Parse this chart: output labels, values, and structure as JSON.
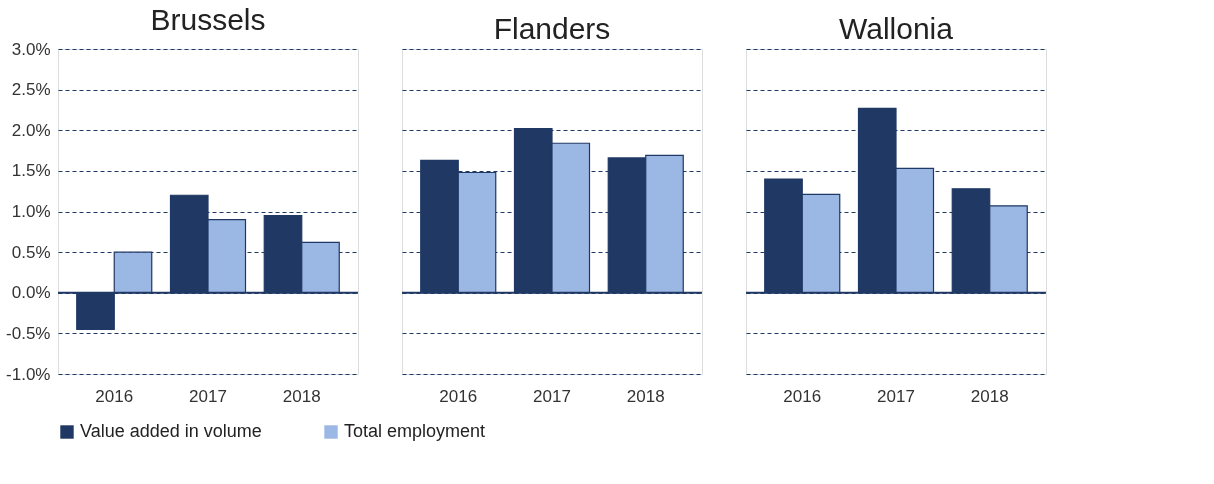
{
  "chart_data": [
    {
      "type": "bar",
      "title": "Brussels",
      "categories": [
        "2016",
        "2017",
        "2018"
      ],
      "series": [
        {
          "name": "Value added in volume",
          "color": "#203864",
          "values": [
            -0.45,
            1.2,
            0.95
          ]
        },
        {
          "name": "Total employment",
          "color": "#9bb7e3",
          "values": [
            0.5,
            0.9,
            0.62
          ]
        }
      ],
      "ylim": [
        -1,
        3
      ],
      "yticks": [
        {
          "value": -1,
          "label": "-1.0%"
        },
        {
          "value": -0.5,
          "label": "-0.5%"
        },
        {
          "value": 0,
          "label": "0.0%"
        },
        {
          "value": 0.5,
          "label": "0.5%"
        },
        {
          "value": 1,
          "label": "1.0%"
        },
        {
          "value": 1.5,
          "label": "1.5%"
        },
        {
          "value": 2,
          "label": "2.0%"
        },
        {
          "value": 2.5,
          "label": "2.5%"
        },
        {
          "value": 3,
          "label": "3.0%"
        }
      ],
      "ref_lines": [
        {
          "axis": "y",
          "value": 0,
          "color": "#203864"
        }
      ],
      "grid": "y",
      "legend": "bottom"
    },
    {
      "type": "bar",
      "title": "Flanders",
      "categories": [
        "2016",
        "2017",
        "2018"
      ],
      "series": [
        {
          "name": "Value added in volume",
          "color": "#203864",
          "values": [
            1.63,
            2.02,
            1.66
          ]
        },
        {
          "name": "Total employment",
          "color": "#9bb7e3",
          "values": [
            1.48,
            1.84,
            1.69
          ]
        }
      ],
      "ylim": [
        -1,
        3
      ],
      "yticks": [
        {
          "value": -1,
          "label": null
        },
        {
          "value": -0.5,
          "label": null
        },
        {
          "value": 0,
          "label": null
        },
        {
          "value": 0.5,
          "label": null
        },
        {
          "value": 1,
          "label": null
        },
        {
          "value": 1.5,
          "label": null
        },
        {
          "value": 2,
          "label": null
        },
        {
          "value": 2.5,
          "label": null
        },
        {
          "value": 3,
          "label": null
        }
      ],
      "ref_lines": [
        {
          "axis": "y",
          "value": 0,
          "color": "#203864"
        }
      ],
      "grid": "y",
      "legend": "bottom",
      "tick_labels": "x"
    },
    {
      "type": "bar",
      "title": "Wallonia",
      "categories": [
        "2016",
        "2017",
        "2018"
      ],
      "series": [
        {
          "name": "Value added in volume",
          "color": "#203864",
          "values": [
            1.4,
            2.27,
            1.28
          ]
        },
        {
          "name": "Total employment",
          "color": "#9bb7e3",
          "values": [
            1.21,
            1.53,
            1.07
          ]
        }
      ],
      "ylim": [
        -1,
        3
      ],
      "yticks": [
        {
          "value": -1,
          "label": null
        },
        {
          "value": -0.5,
          "label": null
        },
        {
          "value": 0,
          "label": null
        },
        {
          "value": 0.5,
          "label": null
        },
        {
          "value": 1,
          "label": null
        },
        {
          "value": 1.5,
          "label": null
        },
        {
          "value": 2,
          "label": null
        },
        {
          "value": 2.5,
          "label": null
        },
        {
          "value": 3,
          "label": null
        }
      ],
      "ref_lines": [
        {
          "axis": "y",
          "value": 0,
          "color": "#203864"
        }
      ],
      "grid": "y",
      "legend": "bottom",
      "tick_labels": "x"
    }
  ]
}
